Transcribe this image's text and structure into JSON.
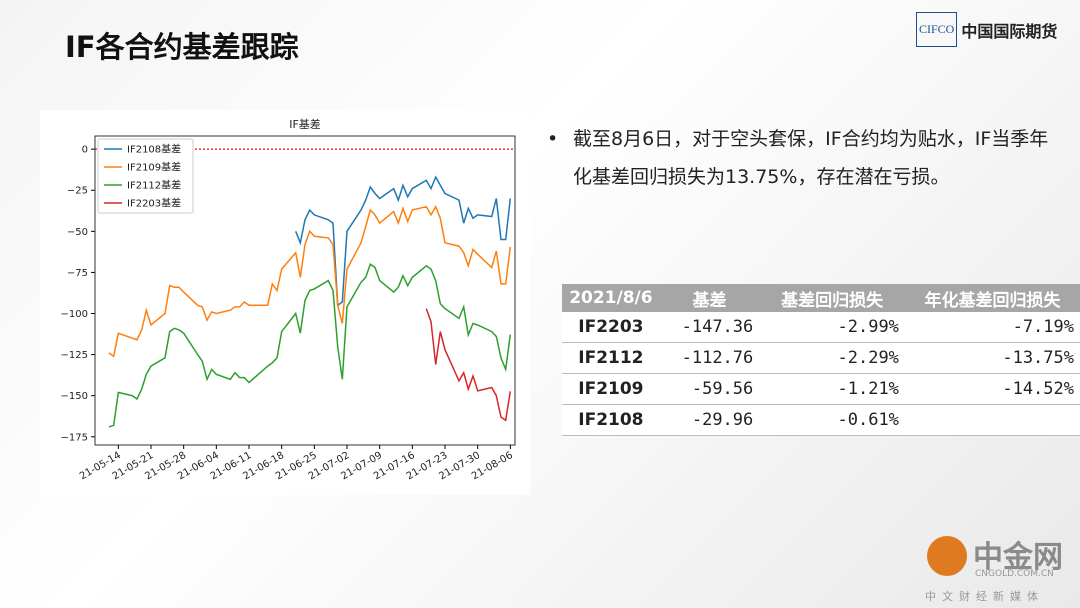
{
  "header": {
    "title": "IF各合约基差跟踪",
    "logo_mark": "CIFCO",
    "logo_text": "中国国际期货"
  },
  "chart_data": {
    "type": "line",
    "title": "IF基差",
    "x": [
      "21-05-10",
      "21-05-11",
      "21-05-12",
      "21-05-13",
      "21-05-14",
      "21-05-17",
      "21-05-18",
      "21-05-19",
      "21-05-20",
      "21-05-21",
      "21-05-24",
      "21-05-25",
      "21-05-26",
      "21-05-27",
      "21-05-28",
      "21-05-31",
      "21-06-01",
      "21-06-02",
      "21-06-03",
      "21-06-04",
      "21-06-07",
      "21-06-08",
      "21-06-09",
      "21-06-10",
      "21-06-11",
      "21-06-15",
      "21-06-16",
      "21-06-17",
      "21-06-18",
      "21-06-21",
      "21-06-22",
      "21-06-23",
      "21-06-24",
      "21-06-25",
      "21-06-28",
      "21-06-29",
      "21-06-30",
      "21-07-01",
      "21-07-02",
      "21-07-05",
      "21-07-06",
      "21-07-07",
      "21-07-08",
      "21-07-09",
      "21-07-12",
      "21-07-13",
      "21-07-14",
      "21-07-15",
      "21-07-16",
      "21-07-19",
      "21-07-20",
      "21-07-21",
      "21-07-22",
      "21-07-23",
      "21-07-26",
      "21-07-27",
      "21-07-28",
      "21-07-29",
      "21-07-30",
      "21-08-02",
      "21-08-03",
      "21-08-04",
      "21-08-05",
      "21-08-06"
    ],
    "series": [
      {
        "name": "IF2108基差",
        "color": "#1f77b4",
        "values": [
          null,
          null,
          null,
          null,
          null,
          null,
          null,
          null,
          null,
          null,
          null,
          null,
          null,
          null,
          null,
          null,
          null,
          null,
          null,
          null,
          null,
          null,
          null,
          null,
          null,
          null,
          null,
          null,
          null,
          -50,
          -57,
          -43,
          -37,
          -40,
          -43,
          -45,
          -95,
          -93,
          -50,
          -37,
          -31,
          -23,
          -27,
          -30,
          -24,
          -31,
          -22,
          -29,
          -24,
          -19,
          -24,
          -17,
          -22,
          -27,
          -31,
          -45,
          -36,
          -42,
          -40,
          -41,
          -30,
          -55,
          -55,
          -29.96
        ]
      },
      {
        "name": "IF2109基差",
        "color": "#ff7f0e",
        "values": [
          null,
          null,
          -124,
          -126,
          -112,
          -115,
          -116,
          -110,
          -98,
          -107,
          -100,
          -83,
          -84,
          -84,
          -87,
          -95,
          -96,
          -104,
          -99,
          -100,
          -98,
          -96,
          -96,
          -93,
          -95,
          -95,
          -82,
          -86,
          -73,
          -63,
          -78,
          -58,
          -50,
          -53,
          -54,
          -58,
          -95,
          -106,
          -73,
          -57,
          -47,
          -37,
          -40,
          -45,
          -38,
          -45,
          -36,
          -44,
          -37,
          -35,
          -40,
          -35,
          -42,
          -57,
          -59,
          -63,
          -71,
          -61,
          -64,
          -72,
          -62,
          -82,
          -82,
          -59.56
        ]
      },
      {
        "name": "IF2112基差",
        "color": "#2ca02c",
        "values": [
          null,
          null,
          -169,
          -168,
          -148,
          -150,
          -152,
          -146,
          -137,
          -132,
          -127,
          -111,
          -109,
          -110,
          -112,
          -125,
          -129,
          -140,
          -134,
          -137,
          -140,
          -136,
          -139,
          -139,
          -142,
          -132,
          -130,
          -127,
          -111,
          -100,
          -112,
          -92,
          -86,
          -85,
          -80,
          -86,
          -120,
          -140,
          -96,
          -81,
          -78,
          -70,
          -72,
          -80,
          -87,
          -84,
          -77,
          -83,
          -78,
          -71,
          -73,
          -80,
          -94,
          -97,
          -103,
          -96,
          -113,
          -106,
          -107,
          -111,
          -114,
          -127,
          -134,
          -112.76
        ]
      },
      {
        "name": "IF2203基差",
        "color": "#d62728",
        "values": [
          null,
          null,
          null,
          null,
          null,
          null,
          null,
          null,
          null,
          null,
          null,
          null,
          null,
          null,
          null,
          null,
          null,
          null,
          null,
          null,
          null,
          null,
          null,
          null,
          null,
          null,
          null,
          null,
          null,
          null,
          null,
          null,
          null,
          null,
          null,
          null,
          null,
          null,
          null,
          null,
          null,
          null,
          null,
          null,
          null,
          null,
          null,
          null,
          null,
          -97,
          -105,
          -131,
          -111,
          -122,
          -141,
          -136,
          -146,
          -138,
          -147,
          -145,
          -150,
          -163,
          -165,
          -147.36
        ]
      }
    ],
    "xlim": [
      "21-05-09",
      "21-08-07"
    ],
    "xticks": [
      "21-05-14",
      "21-05-21",
      "21-05-28",
      "21-06-04",
      "21-06-11",
      "21-06-18",
      "21-06-25",
      "21-07-02",
      "21-07-09",
      "21-07-16",
      "21-07-23",
      "21-07-30",
      "21-08-06"
    ],
    "ylim": [
      -180,
      8
    ],
    "yticks": [
      0,
      {
        "value": -25,
        "label": "−25"
      },
      {
        "value": -50,
        "label": "−50"
      },
      {
        "value": -75,
        "label": "−75"
      },
      {
        "value": -100,
        "label": "−100"
      },
      {
        "value": -125,
        "label": "−125"
      },
      {
        "value": -150,
        "label": "−150"
      },
      {
        "value": -175,
        "label": "−175"
      }
    ],
    "reference_line": {
      "value": 0,
      "color": "#ff0000"
    },
    "legend": "upper left",
    "grid": false
  },
  "bullet": "截至8月6日，对于空头套保，IF合约均为贴水，IF当季年化基差回归损失为13.75%，存在潜在亏损。",
  "table": {
    "header": [
      "2021/8/6",
      "基差",
      "基差回归损失",
      "年化基差回归损失"
    ],
    "rows": [
      [
        "IF2203",
        "-147.36",
        "-2.99%",
        "-7.19%"
      ],
      [
        "IF2112",
        "-112.76",
        "-2.29%",
        "-13.75%"
      ],
      [
        "IF2109",
        "-59.56",
        "-1.21%",
        "-14.52%"
      ],
      [
        "IF2108",
        "-29.96",
        "-0.61%",
        null
      ]
    ]
  },
  "watermark": {
    "name": "中金网",
    "site": "CNGOLD.COM.CN",
    "slogan": "中文财经新媒体"
  }
}
